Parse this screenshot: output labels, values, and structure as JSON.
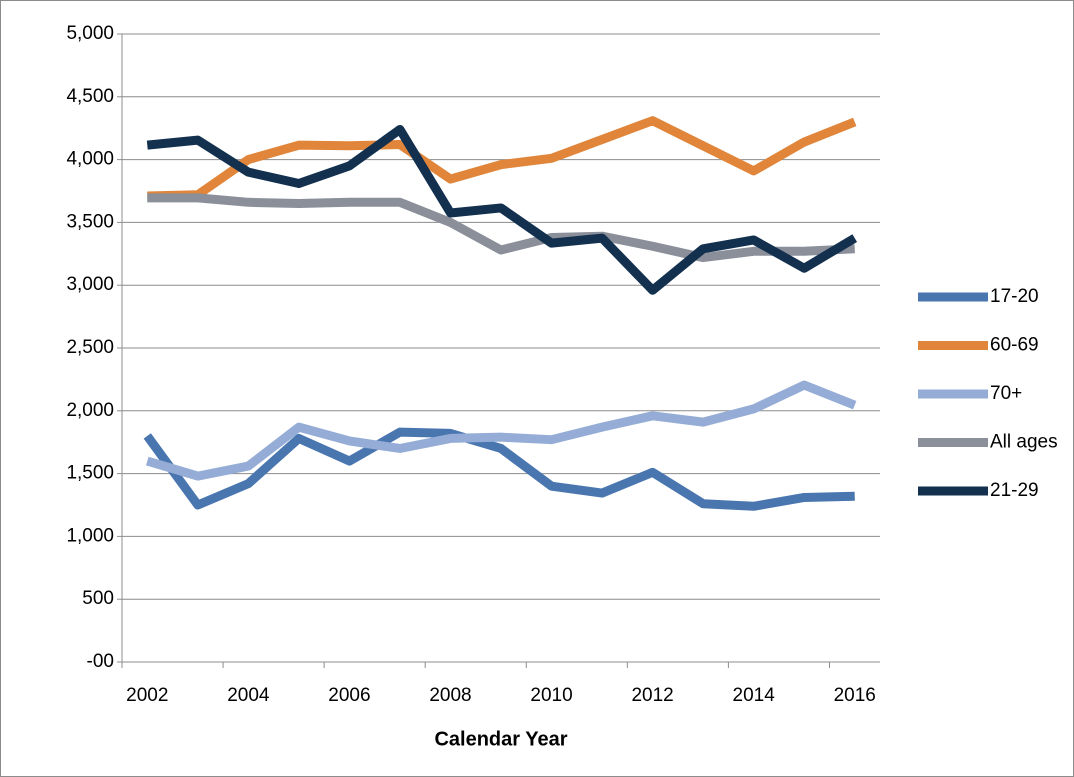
{
  "chart_data": {
    "type": "line",
    "categories": [
      "2002",
      null,
      "2004",
      null,
      "2006",
      null,
      "2008",
      null,
      "2010",
      null,
      "2012",
      null,
      "2014",
      null,
      "2016"
    ],
    "x_label": "Calendar Year",
    "ylim": [
      0,
      5000
    ],
    "yticks": [
      {
        "value": 0,
        "label": "-00"
      },
      500,
      {
        "value": 1000,
        "label": "1,000"
      },
      {
        "value": 1500,
        "label": "1,500"
      },
      {
        "value": 2000,
        "label": "2,000"
      },
      {
        "value": 2500,
        "label": "2,500"
      },
      {
        "value": 3000,
        "label": "3,000"
      },
      {
        "value": 3500,
        "label": "3,500"
      },
      {
        "value": 4000,
        "label": "4,000"
      },
      {
        "value": 4500,
        "label": "4,500"
      },
      {
        "value": 5000,
        "label": "5,000"
      }
    ],
    "grid": true,
    "legend": "right",
    "series": [
      {
        "name": "17-20",
        "color": "#4a76b0",
        "values": [
          1800,
          1250,
          1420,
          1780,
          1600,
          1830,
          1820,
          1700,
          1400,
          1345,
          1510,
          1260,
          1240,
          1310,
          1320
        ]
      },
      {
        "name": "60-69",
        "color": "#e0853a",
        "values": [
          3710,
          3720,
          4000,
          4115,
          4110,
          4120,
          3845,
          3960,
          4010,
          4160,
          4310,
          4110,
          3910,
          4140,
          4300
        ]
      },
      {
        "name": "70+",
        "color": "#95add6",
        "values": [
          1600,
          1480,
          1560,
          1870,
          1760,
          1700,
          1780,
          1790,
          1770,
          1870,
          1960,
          1910,
          2015,
          2205,
          2045
        ]
      },
      {
        "name": "All ages",
        "color": "#8a8f99",
        "values": [
          3695,
          3695,
          3660,
          3650,
          3660,
          3660,
          3500,
          3280,
          3380,
          3390,
          3310,
          3220,
          3270,
          3270,
          3290
        ]
      },
      {
        "name": "21-29",
        "color": "#13304f",
        "values": [
          4115,
          4155,
          3900,
          3810,
          3950,
          4240,
          3575,
          3615,
          3335,
          3375,
          2960,
          3290,
          3360,
          3135,
          3375
        ]
      }
    ]
  }
}
